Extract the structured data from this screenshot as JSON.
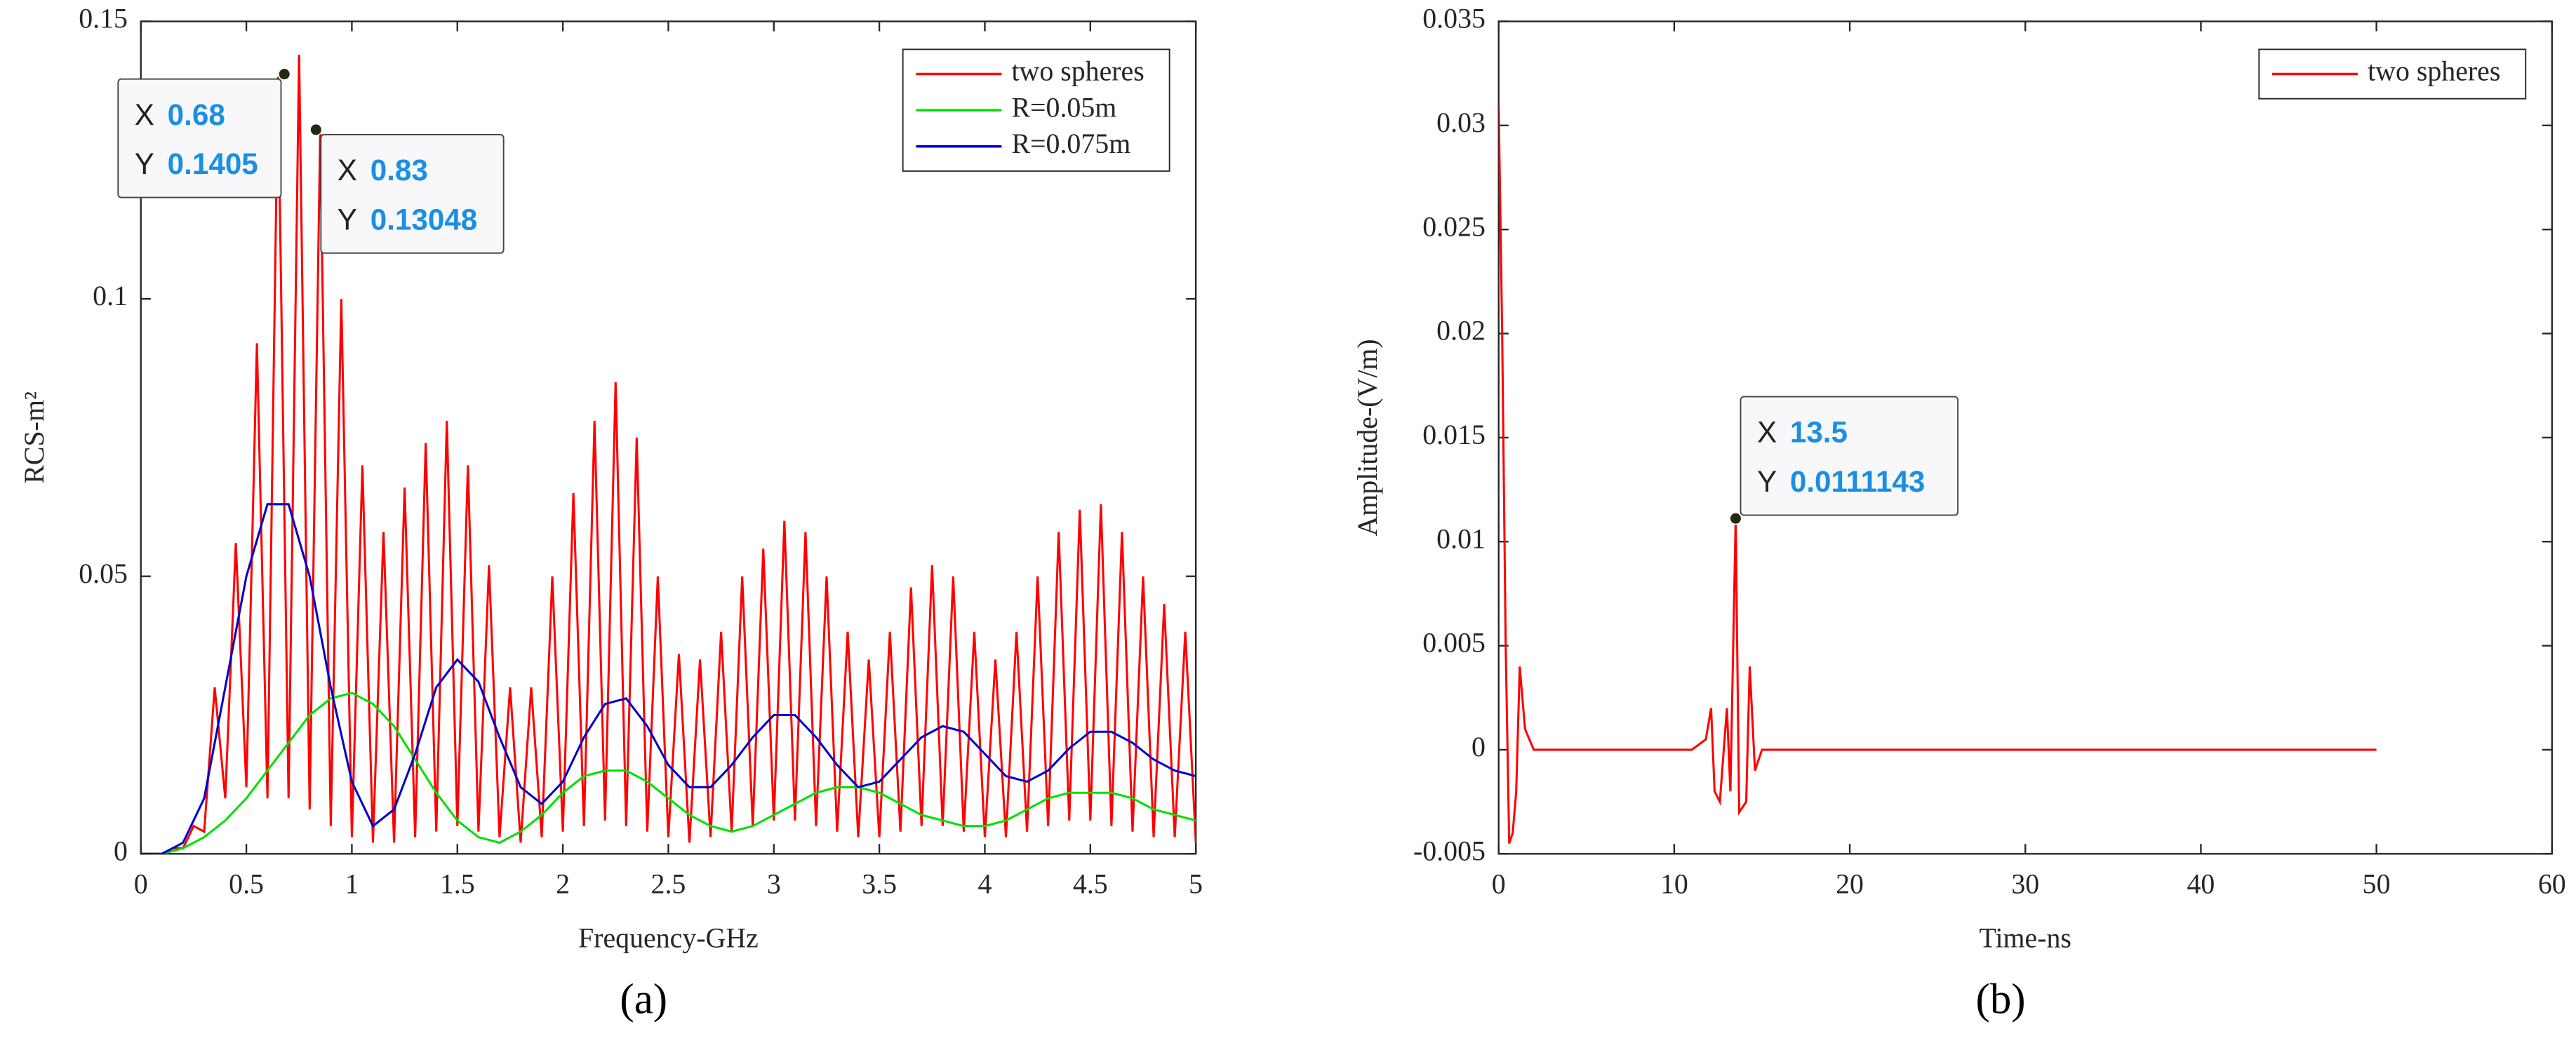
{
  "chart_data": [
    {
      "type": "line",
      "caption": "(a)",
      "x_label": "Frequency-GHz",
      "y_label": "RCS-m²",
      "xlim": [
        0,
        5
      ],
      "ylim": [
        0,
        0.15
      ],
      "xticks": [
        0,
        0.5,
        1,
        1.5,
        2,
        2.5,
        3,
        3.5,
        4,
        4.5,
        5
      ],
      "yticks": [
        0,
        0.05,
        0.1,
        0.15
      ],
      "legend": "upper right",
      "series": [
        {
          "name": "two spheres",
          "color": "#ff0000",
          "x": [
            0,
            0.05,
            0.1,
            0.15,
            0.2,
            0.25,
            0.3,
            0.35,
            0.4,
            0.45,
            0.5,
            0.55,
            0.6,
            0.65,
            0.7,
            0.75,
            0.8,
            0.85,
            0.9,
            0.95,
            1.0,
            1.05,
            1.1,
            1.15,
            1.2,
            1.25,
            1.3,
            1.35,
            1.4,
            1.45,
            1.5,
            1.55,
            1.6,
            1.65,
            1.7,
            1.75,
            1.8,
            1.85,
            1.9,
            1.95,
            2.0,
            2.05,
            2.1,
            2.15,
            2.2,
            2.25,
            2.3,
            2.35,
            2.4,
            2.45,
            2.5,
            2.55,
            2.6,
            2.65,
            2.7,
            2.75,
            2.8,
            2.85,
            2.9,
            2.95,
            3.0,
            3.05,
            3.1,
            3.15,
            3.2,
            3.25,
            3.3,
            3.35,
            3.4,
            3.45,
            3.5,
            3.55,
            3.6,
            3.65,
            3.7,
            3.75,
            3.8,
            3.85,
            3.9,
            3.95,
            4.0,
            4.05,
            4.1,
            4.15,
            4.2,
            4.25,
            4.3,
            4.35,
            4.4,
            4.45,
            4.5,
            4.55,
            4.6,
            4.65,
            4.7,
            4.75,
            4.8,
            4.85,
            4.9,
            4.95,
            5.0
          ],
          "values": [
            0,
            0,
            0,
            0.001,
            0.001,
            0.005,
            0.004,
            0.03,
            0.01,
            0.056,
            0.012,
            0.092,
            0.01,
            0.14,
            0.01,
            0.144,
            0.008,
            0.13,
            0.005,
            0.1,
            0.003,
            0.07,
            0.002,
            0.058,
            0.002,
            0.066,
            0.003,
            0.074,
            0.004,
            0.078,
            0.005,
            0.07,
            0.004,
            0.052,
            0.003,
            0.03,
            0.002,
            0.03,
            0.003,
            0.05,
            0.004,
            0.065,
            0.005,
            0.078,
            0.006,
            0.085,
            0.005,
            0.075,
            0.004,
            0.05,
            0.003,
            0.036,
            0.002,
            0.035,
            0.003,
            0.04,
            0.004,
            0.05,
            0.005,
            0.055,
            0.006,
            0.06,
            0.006,
            0.058,
            0.005,
            0.05,
            0.004,
            0.04,
            0.003,
            0.035,
            0.003,
            0.04,
            0.004,
            0.048,
            0.005,
            0.052,
            0.005,
            0.05,
            0.004,
            0.04,
            0.003,
            0.035,
            0.003,
            0.04,
            0.004,
            0.05,
            0.005,
            0.058,
            0.006,
            0.062,
            0.006,
            0.063,
            0.005,
            0.058,
            0.004,
            0.05,
            0.003,
            0.045,
            0.003,
            0.04,
            0.002
          ]
        },
        {
          "name": "R=0.05m",
          "color": "#00e000",
          "x": [
            0,
            0.1,
            0.2,
            0.3,
            0.4,
            0.5,
            0.6,
            0.7,
            0.8,
            0.9,
            1.0,
            1.1,
            1.2,
            1.3,
            1.4,
            1.5,
            1.6,
            1.7,
            1.8,
            1.9,
            2.0,
            2.1,
            2.2,
            2.3,
            2.4,
            2.5,
            2.6,
            2.7,
            2.8,
            2.9,
            3.0,
            3.1,
            3.2,
            3.3,
            3.4,
            3.5,
            3.6,
            3.7,
            3.8,
            3.9,
            4.0,
            4.1,
            4.2,
            4.3,
            4.4,
            4.5,
            4.6,
            4.7,
            4.8,
            4.9,
            5.0
          ],
          "values": [
            0,
            0,
            0.001,
            0.003,
            0.006,
            0.01,
            0.015,
            0.02,
            0.025,
            0.028,
            0.029,
            0.027,
            0.023,
            0.017,
            0.011,
            0.006,
            0.003,
            0.002,
            0.004,
            0.007,
            0.011,
            0.014,
            0.015,
            0.015,
            0.013,
            0.01,
            0.007,
            0.005,
            0.004,
            0.005,
            0.007,
            0.009,
            0.011,
            0.012,
            0.012,
            0.011,
            0.009,
            0.007,
            0.006,
            0.005,
            0.005,
            0.006,
            0.008,
            0.01,
            0.011,
            0.011,
            0.011,
            0.01,
            0.008,
            0.007,
            0.006
          ]
        },
        {
          "name": "R=0.075m",
          "color": "#0000cc",
          "x": [
            0,
            0.1,
            0.2,
            0.3,
            0.4,
            0.5,
            0.6,
            0.7,
            0.8,
            0.9,
            1.0,
            1.1,
            1.2,
            1.3,
            1.4,
            1.5,
            1.6,
            1.7,
            1.8,
            1.9,
            2.0,
            2.1,
            2.2,
            2.3,
            2.4,
            2.5,
            2.6,
            2.7,
            2.8,
            2.9,
            3.0,
            3.1,
            3.2,
            3.3,
            3.4,
            3.5,
            3.6,
            3.7,
            3.8,
            3.9,
            4.0,
            4.1,
            4.2,
            4.3,
            4.4,
            4.5,
            4.6,
            4.7,
            4.8,
            4.9,
            5.0
          ],
          "values": [
            0,
            0,
            0.002,
            0.01,
            0.03,
            0.05,
            0.063,
            0.063,
            0.05,
            0.03,
            0.013,
            0.005,
            0.008,
            0.018,
            0.03,
            0.035,
            0.031,
            0.021,
            0.012,
            0.009,
            0.013,
            0.021,
            0.027,
            0.028,
            0.023,
            0.016,
            0.012,
            0.012,
            0.016,
            0.021,
            0.025,
            0.025,
            0.021,
            0.016,
            0.012,
            0.013,
            0.017,
            0.021,
            0.023,
            0.022,
            0.018,
            0.014,
            0.013,
            0.015,
            0.019,
            0.022,
            0.022,
            0.02,
            0.017,
            0.015,
            0.014
          ]
        }
      ],
      "annotations": [
        {
          "x_label": "X",
          "x": 0.68,
          "y_label": "Y",
          "y": 0.1405
        },
        {
          "x_label": "X",
          "x": 0.83,
          "y_label": "Y",
          "y": 0.13048
        }
      ]
    },
    {
      "type": "line",
      "caption": "(b)",
      "x_label": "Time-ns",
      "y_label": "Amplitude-(V/m)",
      "xlim": [
        0,
        60
      ],
      "ylim": [
        -0.005,
        0.035
      ],
      "xticks": [
        0,
        10,
        20,
        30,
        40,
        50,
        60
      ],
      "yticks": [
        -0.005,
        0,
        0.005,
        0.01,
        0.015,
        0.02,
        0.025,
        0.03,
        0.035
      ],
      "legend": "upper right",
      "series": [
        {
          "name": "two spheres",
          "color": "#ff0000",
          "x": [
            0,
            0.2,
            0.4,
            0.6,
            0.8,
            1.0,
            1.2,
            1.5,
            2,
            3,
            11,
            11.8,
            12.1,
            12.3,
            12.6,
            13.0,
            13.2,
            13.5,
            13.7,
            14.1,
            14.3,
            14.6,
            15,
            20,
            50
          ],
          "values": [
            0.031,
            0.02,
            0.005,
            -0.0045,
            -0.004,
            -0.002,
            0.004,
            0.001,
            0,
            0,
            0,
            0.0005,
            0.002,
            -0.002,
            -0.0025,
            0.002,
            -0.002,
            0.0111143,
            -0.003,
            -0.0025,
            0.004,
            -0.001,
            0,
            0,
            0
          ]
        }
      ],
      "annotations": [
        {
          "x_label": "X",
          "x": 13.5,
          "y_label": "Y",
          "y": 0.0111143
        }
      ]
    }
  ]
}
